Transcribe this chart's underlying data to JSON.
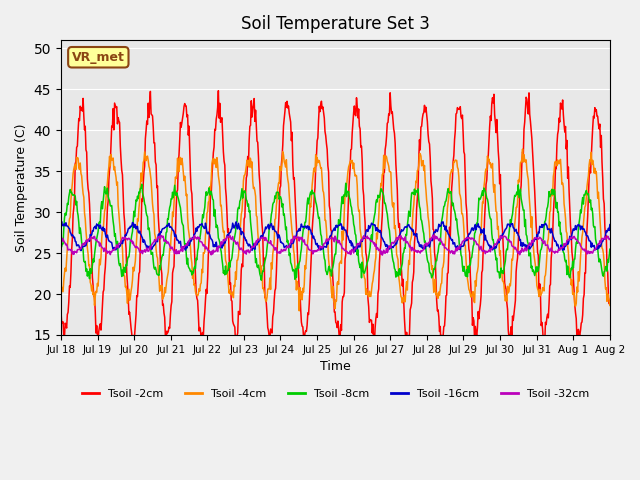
{
  "title": "Soil Temperature Set 3",
  "xlabel": "Time",
  "ylabel": "Soil Temperature (C)",
  "ylim": [
    15,
    51
  ],
  "yticks": [
    15,
    20,
    25,
    30,
    35,
    40,
    45,
    50
  ],
  "annotation": "VR_met",
  "series": [
    {
      "label": "Tsoil -2cm",
      "color": "#ff0000",
      "depth": 2,
      "amplitude": 14.0,
      "phase": 0.0,
      "base": 29.0,
      "noise": 0.8
    },
    {
      "label": "Tsoil -4cm",
      "color": "#ff8800",
      "depth": 4,
      "amplitude": 8.5,
      "phase": 0.12,
      "base": 28.0,
      "noise": 0.6
    },
    {
      "label": "Tsoil -8cm",
      "color": "#00cc00",
      "depth": 8,
      "amplitude": 5.0,
      "phase": 0.28,
      "base": 27.5,
      "noise": 0.4
    },
    {
      "label": "Tsoil -16cm",
      "color": "#0000cc",
      "depth": 16,
      "amplitude": 1.4,
      "phase": 0.5,
      "base": 27.0,
      "noise": 0.2
    },
    {
      "label": "Tsoil -32cm",
      "color": "#bb00bb",
      "depth": 32,
      "amplitude": 0.9,
      "phase": 0.7,
      "base": 26.0,
      "noise": 0.15
    }
  ],
  "n_days": 16,
  "points_per_day": 48,
  "tick_dates": [
    "Jul 18",
    "Jul 19",
    "Jul 20",
    "Jul 21",
    "Jul 22",
    "Jul 23",
    "Jul 24",
    "Jul 25",
    "Jul 26",
    "Jul 27",
    "Jul 28",
    "Jul 29",
    "Jul 30",
    "Jul 31",
    "Aug 1",
    "Aug 2"
  ]
}
